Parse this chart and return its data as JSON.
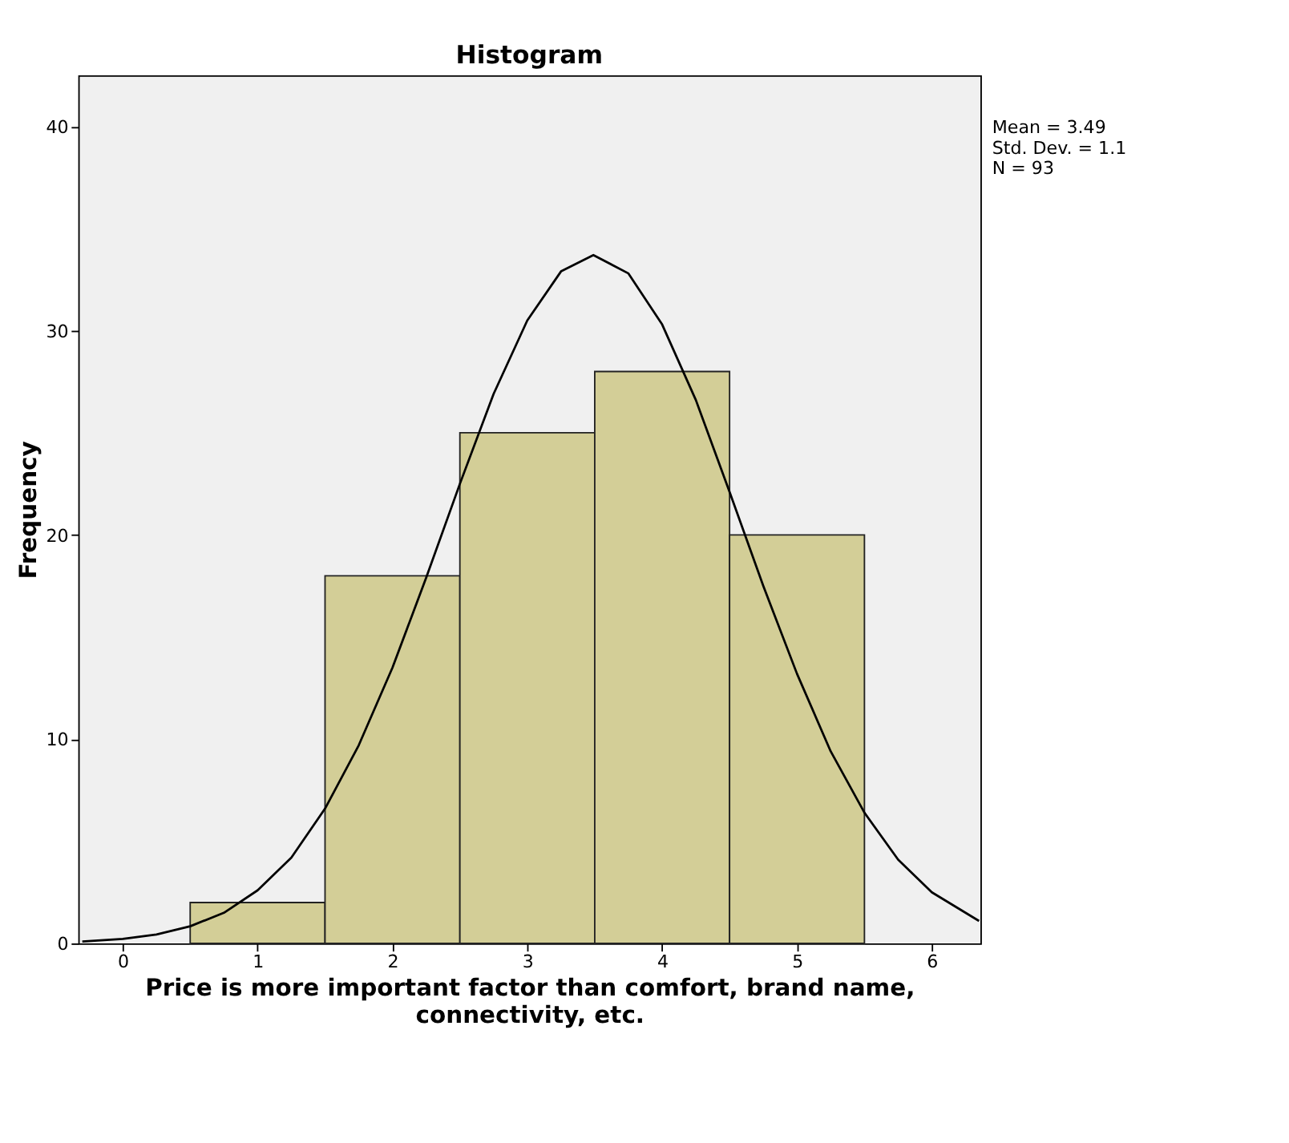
{
  "chart_data": {
    "type": "histogram",
    "title": "Histogram",
    "xlabel": "Price is more important factor than comfort, brand name, connectivity, etc.",
    "ylabel": "Frequency",
    "bins": [
      0.5,
      1.5,
      2.5,
      3.5,
      4.5,
      5.5
    ],
    "values": [
      2,
      18,
      25,
      28,
      20
    ],
    "color": "#d3ce97",
    "series": [
      {
        "type": "line",
        "color": "#000000",
        "x": [
          -0.3,
          0,
          0.25,
          0.5,
          0.75,
          1,
          1.25,
          1.5,
          1.75,
          2,
          2.25,
          2.5,
          2.75,
          3,
          3.25,
          3.49,
          3.75,
          4,
          4.25,
          4.5,
          4.75,
          5,
          5.25,
          5.5,
          5.75,
          6,
          6.35
        ],
        "values": [
          0.09,
          0.22,
          0.44,
          0.84,
          1.5,
          2.6,
          4.2,
          6.6,
          9.7,
          13.5,
          17.9,
          22.5,
          26.9,
          30.5,
          32.9,
          33.7,
          32.8,
          30.3,
          26.6,
          22.1,
          17.5,
          13.2,
          9.4,
          6.4,
          4.1,
          2.5,
          1.1
        ]
      }
    ],
    "xlim": [
      -0.33,
      6.36
    ],
    "ylim": [
      0,
      42.5
    ],
    "xticks": [
      0,
      1,
      2,
      3,
      4,
      5,
      6
    ],
    "yticks": [
      0,
      10,
      20,
      30,
      40
    ],
    "grid": false,
    "annotations": [
      "Mean = 3.49",
      "Std. Dev. = 1.1",
      "N = 93"
    ]
  }
}
